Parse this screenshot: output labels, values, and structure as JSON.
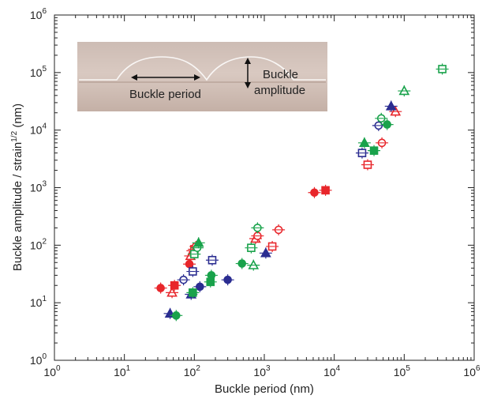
{
  "chart_data": {
    "type": "scatter",
    "title": "",
    "xlabel": "Buckle period (nm)",
    "ylabel_main": "Buckle amplitude / strain",
    "ylabel_sup": "1/2",
    "ylabel_unit": " (nm)",
    "x_scale": "log",
    "y_scale": "log",
    "xlim": [
      1,
      1000000
    ],
    "ylim": [
      1,
      1000000
    ],
    "x_ticks": [
      {
        "base": "10",
        "exp": "0"
      },
      {
        "base": "10",
        "exp": "1"
      },
      {
        "base": "10",
        "exp": "2"
      },
      {
        "base": "10",
        "exp": "3"
      },
      {
        "base": "10",
        "exp": "4"
      },
      {
        "base": "10",
        "exp": "5"
      },
      {
        "base": "10",
        "exp": "6"
      }
    ],
    "y_ticks": [
      {
        "base": "10",
        "exp": "0"
      },
      {
        "base": "10",
        "exp": "1"
      },
      {
        "base": "10",
        "exp": "2"
      },
      {
        "base": "10",
        "exp": "3"
      },
      {
        "base": "10",
        "exp": "4"
      },
      {
        "base": "10",
        "exp": "5"
      },
      {
        "base": "10",
        "exp": "6"
      }
    ],
    "grid": false,
    "legend": "none",
    "inset": {
      "label_period": "Buckle period",
      "label_amplitude_1": "Buckle",
      "label_amplitude_2": "amplitude"
    },
    "colors": {
      "red": "#e8262b",
      "green": "#19a24b",
      "blue": "#2b2d91"
    },
    "points": [
      {
        "x": 33,
        "y": 18,
        "color": "red",
        "marker": "circle-filled"
      },
      {
        "x": 52,
        "y": 20,
        "color": "red",
        "marker": "square-filled"
      },
      {
        "x": 48,
        "y": 15,
        "color": "red",
        "marker": "triangle-open"
      },
      {
        "x": 85,
        "y": 47,
        "color": "red",
        "marker": "circle-filled"
      },
      {
        "x": 88,
        "y": 65,
        "color": "red",
        "marker": "triangle-open"
      },
      {
        "x": 95,
        "y": 80,
        "color": "red",
        "marker": "triangle-filled"
      },
      {
        "x": 100,
        "y": 85,
        "color": "red",
        "marker": "square-open"
      },
      {
        "x": 105,
        "y": 95,
        "color": "red",
        "marker": "circle-open"
      },
      {
        "x": 750,
        "y": 130,
        "color": "red",
        "marker": "triangle-open"
      },
      {
        "x": 800,
        "y": 145,
        "color": "red",
        "marker": "circle-open"
      },
      {
        "x": 1300,
        "y": 95,
        "color": "red",
        "marker": "square-open"
      },
      {
        "x": 1600,
        "y": 185,
        "color": "red",
        "marker": "circle-open"
      },
      {
        "x": 5200,
        "y": 820,
        "color": "red",
        "marker": "circle-filled"
      },
      {
        "x": 7500,
        "y": 900,
        "color": "red",
        "marker": "square-filled"
      },
      {
        "x": 30000,
        "y": 2500,
        "color": "red",
        "marker": "square-open"
      },
      {
        "x": 48000,
        "y": 6000,
        "color": "red",
        "marker": "circle-open"
      },
      {
        "x": 75000,
        "y": 21000,
        "color": "red",
        "marker": "triangle-open"
      },
      {
        "x": 45,
        "y": 6.5,
        "color": "blue",
        "marker": "triangle-filled"
      },
      {
        "x": 70,
        "y": 25,
        "color": "blue",
        "marker": "circle-open"
      },
      {
        "x": 90,
        "y": 14,
        "color": "blue",
        "marker": "triangle-filled"
      },
      {
        "x": 95,
        "y": 35,
        "color": "blue",
        "marker": "square-open"
      },
      {
        "x": 120,
        "y": 19,
        "color": "blue",
        "marker": "circle-filled"
      },
      {
        "x": 180,
        "y": 55,
        "color": "blue",
        "marker": "square-open"
      },
      {
        "x": 300,
        "y": 25,
        "color": "blue",
        "marker": "circle-filled"
      },
      {
        "x": 1050,
        "y": 73,
        "color": "blue",
        "marker": "triangle-filled"
      },
      {
        "x": 25000,
        "y": 4000,
        "color": "blue",
        "marker": "square-open"
      },
      {
        "x": 43000,
        "y": 12000,
        "color": "blue",
        "marker": "circle-open"
      },
      {
        "x": 65000,
        "y": 26000,
        "color": "blue",
        "marker": "triangle-filled"
      },
      {
        "x": 55,
        "y": 6,
        "color": "green",
        "marker": "circle-filled"
      },
      {
        "x": 95,
        "y": 15,
        "color": "green",
        "marker": "square-filled"
      },
      {
        "x": 100,
        "y": 70,
        "color": "green",
        "marker": "square-open"
      },
      {
        "x": 110,
        "y": 90,
        "color": "green",
        "marker": "circle-open"
      },
      {
        "x": 115,
        "y": 110,
        "color": "green",
        "marker": "triangle-filled"
      },
      {
        "x": 170,
        "y": 23,
        "color": "green",
        "marker": "square-filled"
      },
      {
        "x": 175,
        "y": 30,
        "color": "green",
        "marker": "circle-filled"
      },
      {
        "x": 480,
        "y": 48,
        "color": "green",
        "marker": "circle-filled"
      },
      {
        "x": 650,
        "y": 90,
        "color": "green",
        "marker": "square-open"
      },
      {
        "x": 700,
        "y": 45,
        "color": "green",
        "marker": "triangle-open"
      },
      {
        "x": 800,
        "y": 200,
        "color": "green",
        "marker": "circle-open"
      },
      {
        "x": 27000,
        "y": 6000,
        "color": "green",
        "marker": "triangle-filled"
      },
      {
        "x": 37000,
        "y": 4400,
        "color": "green",
        "marker": "square-filled"
      },
      {
        "x": 47000,
        "y": 16000,
        "color": "green",
        "marker": "circle-open"
      },
      {
        "x": 57000,
        "y": 12500,
        "color": "green",
        "marker": "circle-filled"
      },
      {
        "x": 100000,
        "y": 48000,
        "color": "green",
        "marker": "triangle-open"
      },
      {
        "x": 350000,
        "y": 115000,
        "color": "green",
        "marker": "square-open"
      }
    ]
  }
}
